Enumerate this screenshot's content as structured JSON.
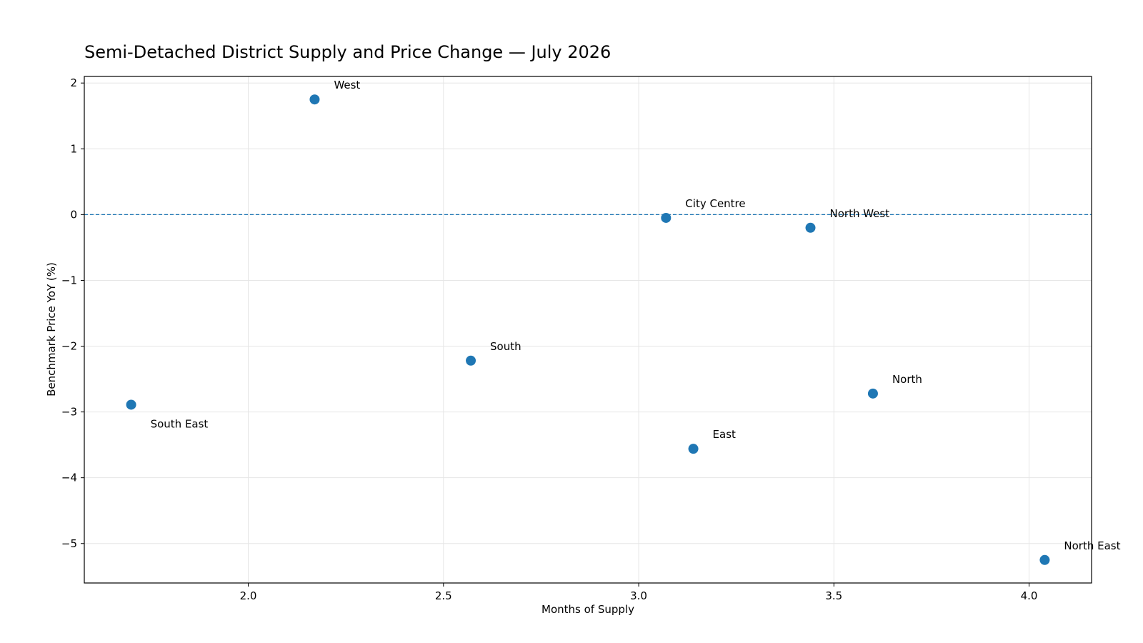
{
  "chart_data": {
    "type": "scatter",
    "title": "Semi-Detached District Supply and Price Change — July 2026",
    "xlabel": "Months of Supply",
    "ylabel": "Benchmark Price YoY (%)",
    "xlim": [
      1.58,
      4.16
    ],
    "ylim": [
      -5.6,
      2.1
    ],
    "xticks": [
      2.0,
      2.5,
      3.0,
      3.5,
      4.0
    ],
    "xtick_labels": [
      "2.0",
      "2.5",
      "3.0",
      "3.5",
      "4.0"
    ],
    "yticks": [
      2,
      1,
      0,
      -1,
      -2,
      -3,
      -4,
      -5
    ],
    "ytick_labels": [
      "2",
      "1",
      "0",
      "−1",
      "−2",
      "−3",
      "−4",
      "−5"
    ],
    "grid": true,
    "reference_line": {
      "y": 0,
      "style": "dashed"
    },
    "marker_color": "#1f77b4",
    "points": [
      {
        "label": "West",
        "x": 2.17,
        "y": 1.75,
        "label_position": "upper-right"
      },
      {
        "label": "City Centre",
        "x": 3.07,
        "y": -0.05,
        "label_position": "upper-right"
      },
      {
        "label": "North West",
        "x": 3.44,
        "y": -0.2,
        "label_position": "upper-right"
      },
      {
        "label": "South",
        "x": 2.57,
        "y": -2.22,
        "label_position": "upper-right"
      },
      {
        "label": "South East",
        "x": 1.7,
        "y": -2.89,
        "label_position": "lower-right"
      },
      {
        "label": "North",
        "x": 3.6,
        "y": -2.72,
        "label_position": "upper-right"
      },
      {
        "label": "East",
        "x": 3.14,
        "y": -3.56,
        "label_position": "upper-right"
      },
      {
        "label": "North East",
        "x": 4.04,
        "y": -5.25,
        "label_position": "upper-right"
      }
    ]
  }
}
